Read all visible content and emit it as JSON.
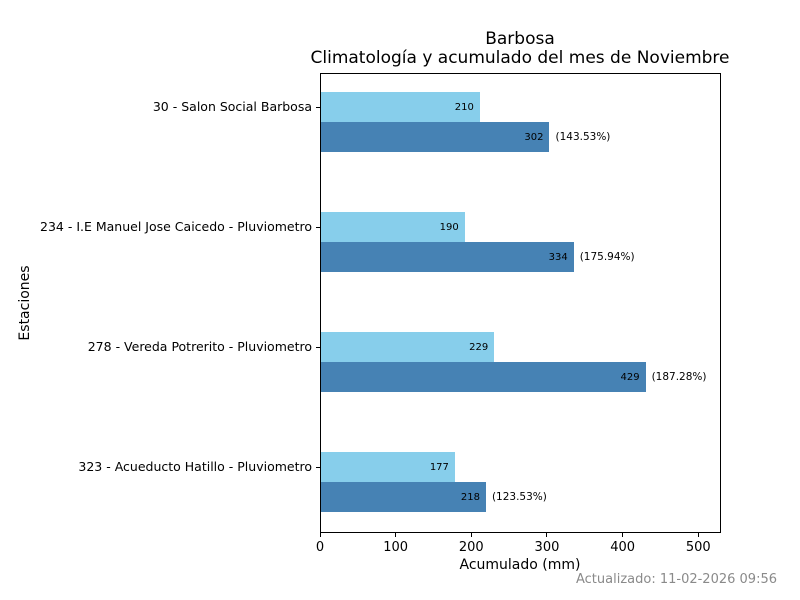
{
  "chart_data": {
    "type": "bar",
    "orientation": "horizontal",
    "title_line1": "Barbosa",
    "title_line2": "Climatología y acumulado del mes de Noviembre",
    "xlabel": "Acumulado (mm)",
    "ylabel": "Estaciones",
    "xlim": [
      0,
      530
    ],
    "x_ticks": [
      0,
      100,
      200,
      300,
      400,
      500
    ],
    "grid": false,
    "legend": "none",
    "series": [
      {
        "name": "Climatología",
        "color": "#87CEEB"
      },
      {
        "name": "Acumulado",
        "color": "#4682B4"
      }
    ],
    "categories": [
      {
        "label": "30 - Salon Social Barbosa",
        "climatologia": 210,
        "acumulado": 302,
        "percent_label": "(143.53%)"
      },
      {
        "label": "234 - I.E Manuel Jose Caicedo - Pluviometro",
        "climatologia": 190,
        "acumulado": 334,
        "percent_label": "(175.94%)"
      },
      {
        "label": "278 - Vereda Potrerito - Pluviometro",
        "climatologia": 229,
        "acumulado": 429,
        "percent_label": "(187.28%)"
      },
      {
        "label": "323 - Acueducto Hatillo - Pluviometro",
        "climatologia": 177,
        "acumulado": 218,
        "percent_label": "(123.53%)"
      }
    ]
  },
  "footer": {
    "updated_label": "Actualizado: 11-02-2026 09:56"
  }
}
